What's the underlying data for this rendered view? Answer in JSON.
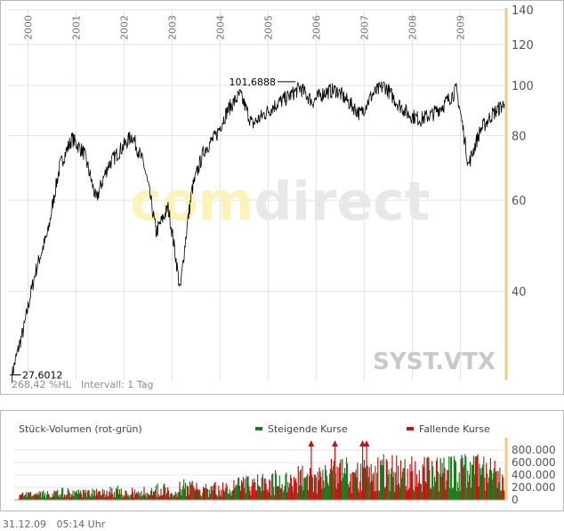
{
  "chart_data": [
    {
      "type": "line",
      "symbol": "SYST.VTX",
      "watermark": "comdirect",
      "y_scale": "log",
      "ylim": [
        27,
        140
      ],
      "yticks": [
        "140",
        "120",
        "100",
        "80",
        "60",
        "40"
      ],
      "x_labels": [
        "2000",
        "2001",
        "2002",
        "2003",
        "2004",
        "2005",
        "2006",
        "2007",
        "2008",
        "2009"
      ],
      "high_label": "101,6888",
      "low_label": "27,6012",
      "performance": "268,42 %HL",
      "interval": "Intervall: 1 Tag",
      "grid": true,
      "series": [
        {
          "x": [
            "1999-09",
            "1999-12",
            "2000-03",
            "2000-06",
            "2000-09",
            "2000-12",
            "2001-03",
            "2001-06",
            "2001-09",
            "2001-12",
            "2002-03",
            "2002-06",
            "2002-09",
            "2002-12",
            "2003-03",
            "2003-06",
            "2003-09",
            "2003-12",
            "2004-03",
            "2004-06",
            "2004-09",
            "2004-12",
            "2005-03",
            "2005-06",
            "2005-09",
            "2005-12",
            "2006-03",
            "2006-06",
            "2006-09",
            "2006-12",
            "2007-03",
            "2007-06",
            "2007-09",
            "2007-12",
            "2008-03",
            "2008-06",
            "2008-09",
            "2008-12",
            "2009-03",
            "2009-06",
            "2009-09",
            "2009-12"
          ],
          "values": [
            27.6,
            34,
            44,
            52,
            70,
            79,
            74,
            60,
            70,
            75,
            80,
            70,
            52,
            58,
            40,
            63,
            75,
            80,
            90,
            96,
            84,
            88,
            92,
            95,
            99,
            93,
            97,
            98,
            93,
            88,
            96,
            100,
            93,
            88,
            86,
            88,
            92,
            98,
            70,
            82,
            88,
            92
          ]
        }
      ]
    },
    {
      "type": "bar",
      "title": "Stück-Volumen (rot-grün)",
      "legend": [
        {
          "name": "Steigende Kurse",
          "color": "#1f7a1f"
        },
        {
          "name": "Fallende Kurse",
          "color": "#cc1111"
        }
      ],
      "yticks": [
        "800.000",
        "600.000",
        "400.000",
        "200.000",
        "0"
      ],
      "ylim": [
        0,
        1000000
      ],
      "x": [
        "1999-09",
        "1999-12",
        "2000-03",
        "2000-06",
        "2000-09",
        "2000-12",
        "2001-03",
        "2001-06",
        "2001-09",
        "2001-12",
        "2002-03",
        "2002-06",
        "2002-09",
        "2002-12",
        "2003-03",
        "2003-06",
        "2003-09",
        "2003-12",
        "2004-03",
        "2004-06",
        "2004-09",
        "2004-12",
        "2005-03",
        "2005-06",
        "2005-09",
        "2005-12",
        "2006-03",
        "2006-06",
        "2006-09",
        "2006-12",
        "2007-03",
        "2007-06",
        "2007-09",
        "2007-12",
        "2008-03",
        "2008-06",
        "2008-09",
        "2008-12",
        "2009-03",
        "2009-06",
        "2009-09",
        "2009-12"
      ],
      "values": [
        60000,
        70000,
        80000,
        90000,
        110000,
        120000,
        100000,
        90000,
        130000,
        100000,
        110000,
        120000,
        150000,
        130000,
        180000,
        150000,
        140000,
        160000,
        180000,
        200000,
        220000,
        240000,
        260000,
        280000,
        300000,
        320000,
        350000,
        380000,
        360000,
        340000,
        380000,
        400000,
        420000,
        380000,
        360000,
        380000,
        400000,
        420000,
        460000,
        400000,
        380000,
        360000
      ],
      "direction": [
        "up",
        "up",
        "up",
        "up",
        "up",
        "down",
        "down",
        "down",
        "up",
        "up",
        "up",
        "down",
        "down",
        "up",
        "down",
        "up",
        "up",
        "up",
        "up",
        "up",
        "down",
        "up",
        "up",
        "up",
        "up",
        "down",
        "up",
        "up",
        "down",
        "down",
        "up",
        "up",
        "down",
        "down",
        "down",
        "up",
        "up",
        "up",
        "down",
        "up",
        "up",
        "up"
      ],
      "peaks_cut": [
        {
          "x": "2005-11",
          "value": 1000000
        },
        {
          "x": "2006-05",
          "value": 1000000
        },
        {
          "x": "2006-12",
          "value": 1000000
        },
        {
          "x": "2007-01",
          "value": 1000000
        }
      ]
    }
  ],
  "footer": {
    "date": "31.12.09",
    "time": "05:14 Uhr"
  },
  "colors": {
    "grid": "#e3e3e3",
    "line": "#000000",
    "axis_accent": "#f2c88a",
    "watermark_yellow": "#fbf3b8",
    "watermark_gray": "#e8e8e8",
    "symbol_text": "#c9c9c9",
    "up": "#1f7a1f",
    "down": "#cc1111"
  }
}
